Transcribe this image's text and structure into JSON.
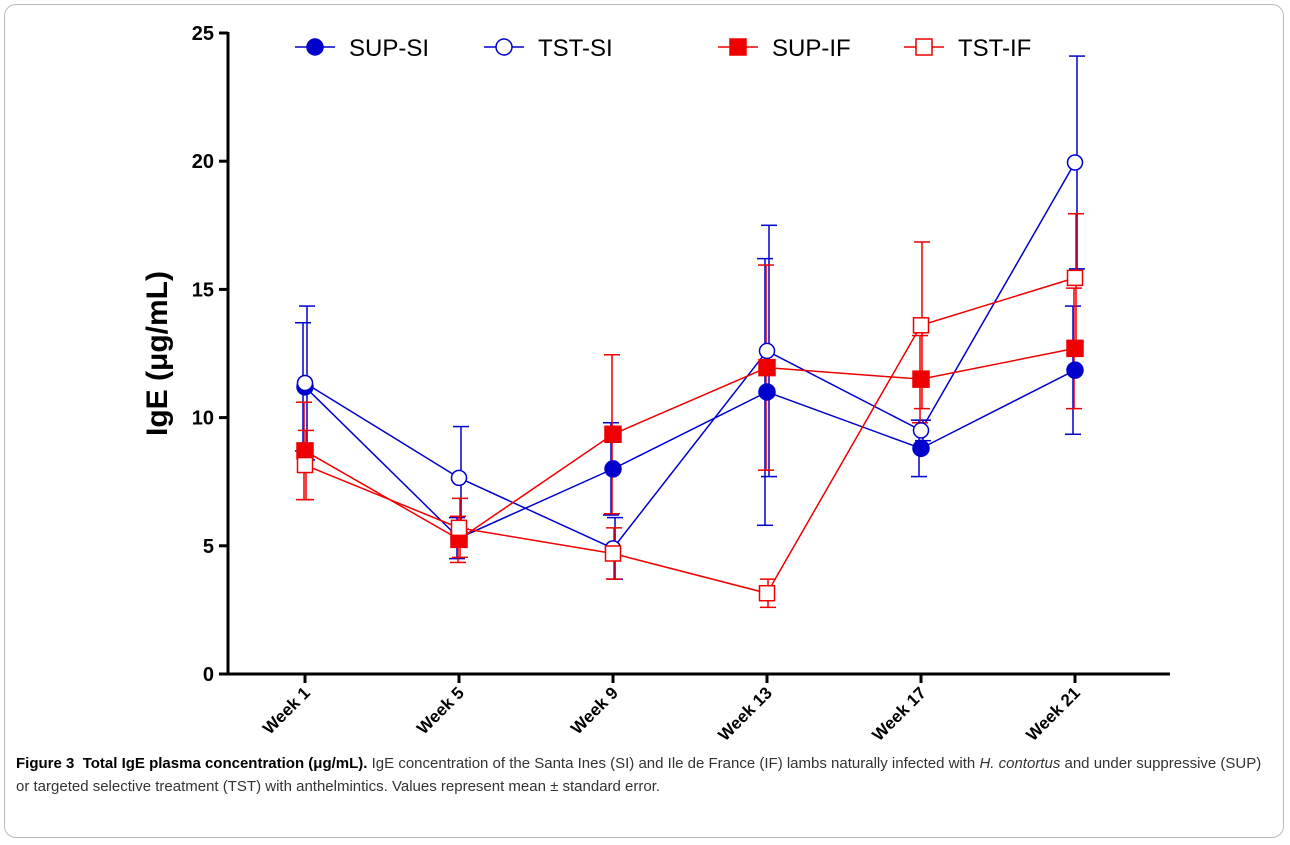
{
  "chart_data": {
    "type": "line",
    "categories": [
      "Week 1",
      "Week 5",
      "Week 9",
      "Week 13",
      "Week 17",
      "Week 21"
    ],
    "ylabel": "IgE (μg/mL)",
    "ylim": [
      0,
      25
    ],
    "yticks": [
      0,
      5,
      10,
      15,
      20,
      25
    ],
    "grid": false,
    "legend": "top",
    "series": [
      {
        "name": "SUP-SI",
        "color": "#0000cc",
        "marker": "circle",
        "filled": true,
        "values": [
          11.2,
          5.3,
          8.0,
          11.0,
          8.8,
          11.85
        ],
        "errors": [
          2.5,
          0.8,
          1.8,
          5.2,
          1.1,
          2.5
        ]
      },
      {
        "name": "TST-SI",
        "color": "#0000cc",
        "marker": "circle",
        "filled": false,
        "values": [
          11.35,
          7.65,
          4.9,
          12.6,
          9.5,
          19.95
        ],
        "errors": [
          3.0,
          2.0,
          1.2,
          4.9,
          0.4,
          4.15
        ]
      },
      {
        "name": "SUP-IF",
        "color": "#ee0000",
        "marker": "square",
        "filled": true,
        "values": [
          8.7,
          5.25,
          9.35,
          11.95,
          11.5,
          12.7
        ],
        "errors": [
          1.9,
          0.9,
          3.1,
          4.0,
          1.7,
          2.35
        ]
      },
      {
        "name": "TST-IF",
        "color": "#ee0000",
        "marker": "square",
        "filled": false,
        "values": [
          8.15,
          5.7,
          4.7,
          3.15,
          13.6,
          15.45
        ],
        "errors": [
          1.35,
          1.15,
          1.0,
          0.55,
          3.25,
          2.5
        ]
      }
    ]
  },
  "caption": {
    "label": "Figure 3",
    "title": "Total IgE plasma concentration (μg/mL).",
    "text_1": " IgE concentration of the Santa Ines (SI) and Ile de France (IF) lambs naturally infected with ",
    "italic_1": "H. contortus",
    "text_2": " and under suppressive (SUP) or targeted selective treatment (TST) with anthelmintics. Values represent mean ± standard error."
  }
}
